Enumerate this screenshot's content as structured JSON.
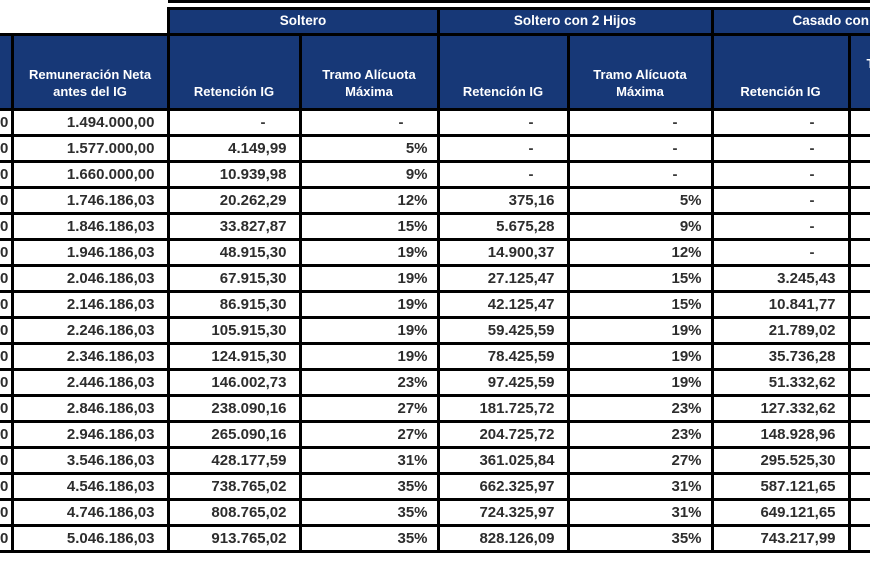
{
  "header": {
    "groups": {
      "soltero": "Soltero",
      "soltero_2_hijos": "Soltero con 2 Hijos",
      "casado_clipped": "Casado con"
    },
    "columns": {
      "remuneracion_l1": "Remuneración Neta",
      "remuneracion_l2": "antes del IG",
      "retencion": "Retención IG",
      "tramo_l1": "Tramo Alícuota",
      "tramo_l2": "Máxima",
      "right_clipped_fragment": "T"
    }
  },
  "table": {
    "left_clipped_fragment": "0",
    "rows": [
      {
        "neta": "1.494.000,00",
        "s_ret": "-",
        "s_tramo": "-",
        "h2_ret": "-",
        "h2_tramo": "-",
        "c_ret": "-"
      },
      {
        "neta": "1.577.000,00",
        "s_ret": "4.149,99",
        "s_tramo": "5%",
        "h2_ret": "-",
        "h2_tramo": "-",
        "c_ret": "-"
      },
      {
        "neta": "1.660.000,00",
        "s_ret": "10.939,98",
        "s_tramo": "9%",
        "h2_ret": "-",
        "h2_tramo": "-",
        "c_ret": "-"
      },
      {
        "neta": "1.746.186,03",
        "s_ret": "20.262,29",
        "s_tramo": "12%",
        "h2_ret": "375,16",
        "h2_tramo": "5%",
        "c_ret": "-"
      },
      {
        "neta": "1.846.186,03",
        "s_ret": "33.827,87",
        "s_tramo": "15%",
        "h2_ret": "5.675,28",
        "h2_tramo": "9%",
        "c_ret": "-"
      },
      {
        "neta": "1.946.186,03",
        "s_ret": "48.915,30",
        "s_tramo": "19%",
        "h2_ret": "14.900,37",
        "h2_tramo": "12%",
        "c_ret": "-"
      },
      {
        "neta": "2.046.186,03",
        "s_ret": "67.915,30",
        "s_tramo": "19%",
        "h2_ret": "27.125,47",
        "h2_tramo": "15%",
        "c_ret": "3.245,43"
      },
      {
        "neta": "2.146.186,03",
        "s_ret": "86.915,30",
        "s_tramo": "19%",
        "h2_ret": "42.125,47",
        "h2_tramo": "15%",
        "c_ret": "10.841,77"
      },
      {
        "neta": "2.246.186,03",
        "s_ret": "105.915,30",
        "s_tramo": "19%",
        "h2_ret": "59.425,59",
        "h2_tramo": "19%",
        "c_ret": "21.789,02"
      },
      {
        "neta": "2.346.186,03",
        "s_ret": "124.915,30",
        "s_tramo": "19%",
        "h2_ret": "78.425,59",
        "h2_tramo": "19%",
        "c_ret": "35.736,28"
      },
      {
        "neta": "2.446.186,03",
        "s_ret": "146.002,73",
        "s_tramo": "23%",
        "h2_ret": "97.425,59",
        "h2_tramo": "19%",
        "c_ret": "51.332,62"
      },
      {
        "neta": "2.846.186,03",
        "s_ret": "238.090,16",
        "s_tramo": "27%",
        "h2_ret": "181.725,72",
        "h2_tramo": "23%",
        "c_ret": "127.332,62"
      },
      {
        "neta": "2.946.186,03",
        "s_ret": "265.090,16",
        "s_tramo": "27%",
        "h2_ret": "204.725,72",
        "h2_tramo": "23%",
        "c_ret": "148.928,96"
      },
      {
        "neta": "3.546.186,03",
        "s_ret": "428.177,59",
        "s_tramo": "31%",
        "h2_ret": "361.025,84",
        "h2_tramo": "27%",
        "c_ret": "295.525,30"
      },
      {
        "neta": "4.546.186,03",
        "s_ret": "738.765,02",
        "s_tramo": "35%",
        "h2_ret": "662.325,97",
        "h2_tramo": "31%",
        "c_ret": "587.121,65"
      },
      {
        "neta": "4.746.186,03",
        "s_ret": "808.765,02",
        "s_tramo": "35%",
        "h2_ret": "724.325,97",
        "h2_tramo": "31%",
        "c_ret": "649.121,65"
      },
      {
        "neta": "5.046.186,03",
        "s_ret": "913.765,02",
        "s_tramo": "35%",
        "h2_ret": "828.126,09",
        "h2_tramo": "35%",
        "c_ret": "743.217,99"
      }
    ]
  },
  "colors": {
    "header_bg": "#173877",
    "header_text": "#FFFFFF",
    "border": "#000000",
    "data_text": "#2D2D2D"
  }
}
